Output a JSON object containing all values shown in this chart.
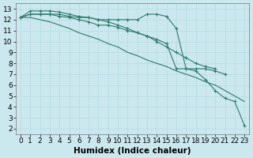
{
  "xlabel": "Humidex (Indice chaleur)",
  "bg_color": "#cce8ef",
  "grid_color": "#b8dde5",
  "line_color": "#2d7a6a",
  "lines": [
    {
      "x": [
        0,
        1,
        2,
        3,
        4,
        5,
        6,
        7,
        8,
        9,
        10,
        11,
        12,
        13,
        14,
        15,
        16,
        17,
        18,
        19,
        20,
        21,
        22,
        23
      ],
      "y": [
        12.2,
        12.2,
        12.0,
        11.8,
        11.5,
        11.2,
        10.8,
        10.5,
        10.2,
        9.8,
        9.5,
        9.0,
        8.7,
        8.3,
        8.0,
        7.7,
        7.3,
        7.0,
        6.7,
        6.3,
        6.0,
        5.5,
        5.0,
        4.5
      ],
      "marker": false,
      "linestyle": "-"
    },
    {
      "x": [
        0,
        1,
        2,
        3,
        4,
        5,
        6,
        7,
        8,
        9,
        10,
        11,
        12,
        13,
        14,
        15,
        16,
        17,
        18,
        19,
        20
      ],
      "y": [
        12.2,
        12.8,
        12.8,
        12.8,
        12.7,
        12.5,
        12.3,
        12.2,
        12.0,
        11.8,
        11.5,
        11.2,
        10.8,
        10.5,
        10.0,
        9.5,
        9.0,
        8.5,
        8.0,
        7.7,
        7.5
      ],
      "marker": true,
      "linestyle": "-"
    },
    {
      "x": [
        0,
        1,
        2,
        3,
        4,
        5,
        6,
        7,
        8,
        9,
        10,
        11,
        12,
        13,
        14,
        15,
        16,
        17,
        18,
        19,
        20,
        21,
        22,
        23
      ],
      "y": [
        12.2,
        12.5,
        12.5,
        12.5,
        12.5,
        12.3,
        12.2,
        12.2,
        12.0,
        12.0,
        12.0,
        12.0,
        12.0,
        12.5,
        12.5,
        12.3,
        11.2,
        7.5,
        7.5,
        7.5,
        7.3,
        7.0,
        null,
        null
      ],
      "marker": true,
      "linestyle": "-"
    },
    {
      "x": [
        0,
        1,
        2,
        3,
        4,
        5,
        6,
        7,
        8,
        9,
        10,
        11,
        12,
        13,
        14,
        15,
        16,
        17,
        18,
        19,
        20,
        21,
        22,
        23
      ],
      "y": [
        12.2,
        12.5,
        12.5,
        12.5,
        12.3,
        12.2,
        12.0,
        11.8,
        11.5,
        11.5,
        11.3,
        11.0,
        10.8,
        10.5,
        10.2,
        9.8,
        7.5,
        7.5,
        7.3,
        6.5,
        5.5,
        4.8,
        4.5,
        2.3
      ],
      "marker": true,
      "linestyle": "-"
    }
  ],
  "xlim": [
    -0.5,
    23.5
  ],
  "ylim": [
    1.5,
    13.5
  ],
  "yticks": [
    2,
    3,
    4,
    5,
    6,
    7,
    8,
    9,
    10,
    11,
    12,
    13
  ],
  "xticks": [
    0,
    1,
    2,
    3,
    4,
    5,
    6,
    7,
    8,
    9,
    10,
    11,
    12,
    13,
    14,
    15,
    16,
    17,
    18,
    19,
    20,
    21,
    22,
    23
  ],
  "tick_fontsize": 6.5,
  "label_fontsize": 7.5
}
